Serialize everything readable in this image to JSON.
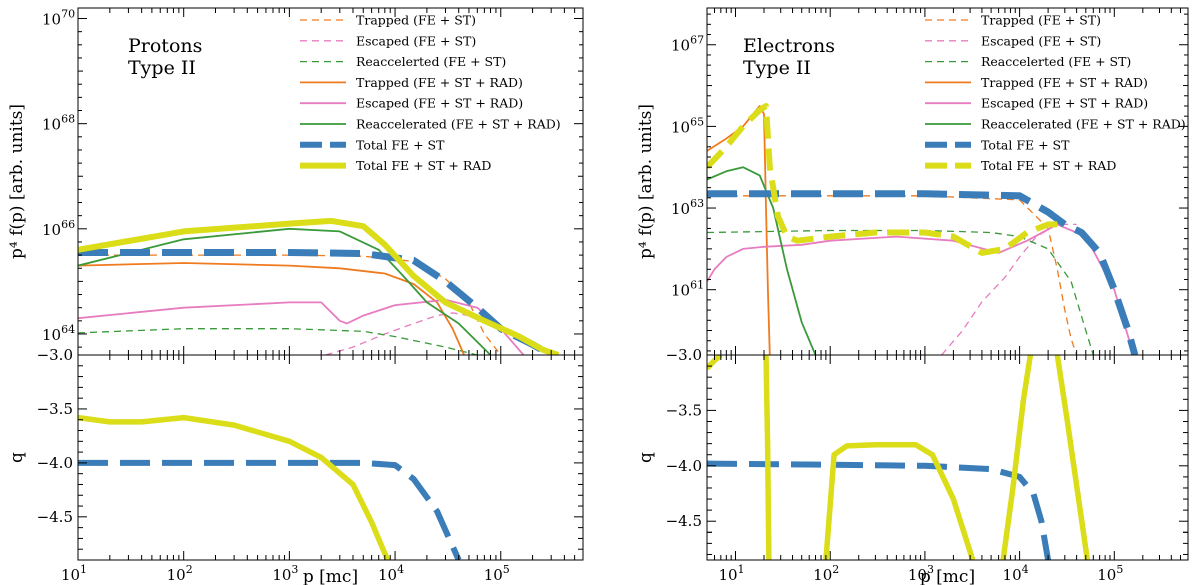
{
  "figure": {
    "xlabel": "p [mc]",
    "ylabel_top": "p⁴ f(p) [arb. units]",
    "ylabel_bottom": "q"
  },
  "chart_data": [
    {
      "type": "line",
      "panel": "protons",
      "title_lines": [
        "Protons",
        "Type II"
      ],
      "xscale": "log",
      "xlim": [
        10,
        600000
      ],
      "top": {
        "yscale": "log",
        "ylim_exp": [
          63.6,
          70.2
        ],
        "ytick_exps": [
          64,
          66,
          68,
          70
        ],
        "ytick_labels": [
          "10",
          "10",
          "10",
          "10"
        ],
        "ytick_sups": [
          "64",
          "66",
          "68",
          "70"
        ],
        "bottom_label": "−3.0",
        "series": [
          {
            "name": "Trapped (FE + ST)",
            "color": "#f07a1e",
            "width": 1.3,
            "dash": "7 5",
            "x": [
              10,
              100,
              1000,
              5000,
              15000,
              30000,
              50000,
              70000,
              100000
            ],
            "y": [
              65.5,
              65.5,
              65.5,
              65.48,
              65.38,
              65.05,
              64.6,
              64.0,
              63.6
            ]
          },
          {
            "name": "Escaped (FE + ST)",
            "color": "#e77cc0",
            "width": 1.3,
            "dash": "7 5",
            "x": [
              2200,
              4000,
              8000,
              15000,
              25000,
              35000,
              50000
            ],
            "y": [
              63.6,
              63.75,
              64.0,
              64.2,
              64.35,
              64.4,
              64.35
            ]
          },
          {
            "name": "Reaccelerted (FE + ST)",
            "color": "#3a9a3a",
            "width": 1.3,
            "dash": "7 5",
            "x": [
              10,
              100,
              1000,
              5000,
              10000,
              30000,
              60000,
              90000,
              120000
            ],
            "y": [
              64.02,
              64.1,
              64.1,
              64.05,
              63.95,
              63.75,
              63.6,
              63.5,
              63.3
            ]
          },
          {
            "name": "Trapped (FE + ST + RAD)",
            "color": "#f07a1e",
            "width": 1.8,
            "dash": "",
            "x": [
              10,
              100,
              1000,
              3000,
              8000,
              15000,
              25000,
              35000,
              45000
            ],
            "y": [
              65.3,
              65.35,
              65.3,
              65.25,
              65.15,
              64.95,
              64.6,
              64.1,
              63.6
            ]
          },
          {
            "name": "Escaped (FE + ST + RAD)",
            "color": "#e77cc0",
            "width": 1.8,
            "dash": "",
            "x": [
              10,
              100,
              1000,
              2000,
              3000,
              3500,
              5000,
              10000,
              30000,
              60000,
              100000,
              200000
            ],
            "y": [
              64.3,
              64.5,
              64.6,
              64.6,
              64.25,
              64.2,
              64.35,
              64.55,
              64.65,
              64.5,
              64.1,
              63.4
            ]
          },
          {
            "name": "Reaccelerated (FE + ST + RAD)",
            "color": "#3a9a3a",
            "width": 1.8,
            "dash": "",
            "x": [
              10,
              100,
              1000,
              3000,
              7000,
              12000,
              20000,
              40000,
              80000
            ],
            "y": [
              65.3,
              65.8,
              66.0,
              65.95,
              65.6,
              65.1,
              64.6,
              64.2,
              63.6
            ]
          },
          {
            "name": "Total FE + ST",
            "color": "#3a7db9",
            "width": 7,
            "dash": "30 12",
            "x": [
              10,
              100,
              1000,
              5000,
              15000,
              30000,
              60000,
              100000,
              200000,
              300000
            ],
            "y": [
              65.55,
              65.55,
              65.55,
              65.53,
              65.4,
              65.0,
              64.5,
              64.1,
              63.8,
              63.6
            ]
          },
          {
            "name": "Total FE + ST + RAD",
            "color": "#dadd17",
            "width": 6,
            "dash": "",
            "x": [
              10,
              100,
              1000,
              2500,
              5000,
              8000,
              15000,
              30000,
              70000,
              150000,
              250000,
              350000
            ],
            "y": [
              65.6,
              65.95,
              66.1,
              66.15,
              66.05,
              65.7,
              65.1,
              64.6,
              64.25,
              63.95,
              63.7,
              63.6
            ]
          }
        ]
      },
      "bottom": {
        "ylim": [
          -4.9,
          -3.0
        ],
        "ytick_values": [
          -3.5,
          -4.0,
          -4.5
        ],
        "ytick_labels": [
          "−3.5",
          "−4.0",
          "−4.5"
        ],
        "series": [
          {
            "name": "q FE + ST",
            "color": "#3a7db9",
            "width": 6,
            "dash": "30 12",
            "x": [
              10,
              100,
              1000,
              5000,
              10000,
              15000,
              25000,
              40000
            ],
            "y": [
              -4.0,
              -4.0,
              -4.0,
              -4.0,
              -4.02,
              -4.15,
              -4.45,
              -4.9
            ]
          },
          {
            "name": "q FE + ST + RAD",
            "color": "#dadd17",
            "width": 5.5,
            "dash": "",
            "x": [
              10,
              20,
              40,
              100,
              300,
              1000,
              2000,
              4000,
              6000,
              8500
            ],
            "y": [
              -3.58,
              -3.62,
              -3.62,
              -3.58,
              -3.65,
              -3.8,
              -3.95,
              -4.2,
              -4.55,
              -4.9
            ]
          }
        ]
      },
      "xticks": [
        {
          "value": 10,
          "label": "10",
          "sup": "1"
        },
        {
          "value": 100,
          "label": "10",
          "sup": "2"
        },
        {
          "value": 1000,
          "label": "10",
          "sup": "3"
        },
        {
          "value": 10000,
          "label": "10",
          "sup": "4"
        },
        {
          "value": 100000,
          "label": "10",
          "sup": "5"
        }
      ]
    },
    {
      "type": "line",
      "panel": "electrons",
      "title_lines": [
        "Electrons",
        "Type II"
      ],
      "xscale": "log",
      "xlim": [
        5,
        600000
      ],
      "top": {
        "yscale": "log",
        "ylim_exp": [
          59.4,
          67.9
        ],
        "ytick_exps": [
          61,
          63,
          65,
          67
        ],
        "ytick_labels": [
          "10",
          "10",
          "10",
          "10"
        ],
        "ytick_sups": [
          "61",
          "63",
          "65",
          "67"
        ],
        "bottom_label": "−3.0",
        "series": [
          {
            "name": "Trapped (FE + ST)",
            "color": "#f07a1e",
            "width": 1.3,
            "dash": "7 5",
            "x": [
              5,
              100,
              1000,
              10000,
              20000,
              25000,
              30000,
              35000,
              40000
            ],
            "y": [
              63.3,
              63.3,
              63.3,
              63.2,
              62.5,
              61.5,
              60.5,
              59.8,
              59.4
            ]
          },
          {
            "name": "Escaped (FE + ST)",
            "color": "#e77cc0",
            "width": 1.3,
            "dash": "7 5",
            "x": [
              1500,
              2500,
              4000,
              7000,
              10000,
              15000,
              25000,
              40000
            ],
            "y": [
              59.4,
              60.0,
              60.7,
              61.3,
              61.8,
              62.3,
              62.6,
              62.6
            ]
          },
          {
            "name": "Reaccelerted (FE + ST)",
            "color": "#3a9a3a",
            "width": 1.3,
            "dash": "7 5",
            "x": [
              5,
              100,
              1000,
              5000,
              10000,
              20000,
              35000,
              50000,
              60000
            ],
            "y": [
              62.4,
              62.45,
              62.45,
              62.4,
              62.3,
              62.0,
              61.2,
              60.0,
              59.4
            ]
          },
          {
            "name": "Trapped (FE + ST + RAD)",
            "color": "#f07a1e",
            "width": 1.8,
            "dash": "",
            "x": [
              5,
              8,
              12,
              18,
              20,
              21,
              22,
              23
            ],
            "y": [
              64.4,
              64.7,
              65.0,
              65.5,
              65.3,
              63.0,
              61.0,
              59.4
            ]
          },
          {
            "name": "Escaped (FE + ST + RAD)",
            "color": "#e77cc0",
            "width": 1.8,
            "dash": "",
            "x": [
              5,
              6,
              8,
              12,
              20,
              50,
              100,
              500,
              2000,
              6000,
              12000,
              25000,
              50000,
              100000,
              160000
            ],
            "y": [
              61.2,
              61.5,
              61.8,
              62.0,
              62.05,
              62.1,
              62.2,
              62.3,
              62.2,
              61.9,
              62.2,
              62.6,
              62.3,
              61.0,
              59.4
            ]
          },
          {
            "name": "Reaccelerated (FE + ST + RAD)",
            "color": "#3a9a3a",
            "width": 1.8,
            "dash": "",
            "x": [
              5,
              8,
              12,
              18,
              25,
              35,
              50,
              70
            ],
            "y": [
              63.7,
              63.9,
              64.0,
              63.8,
              63.0,
              61.5,
              60.2,
              59.4
            ]
          },
          {
            "name": "Total FE + ST",
            "color": "#3a7db9",
            "width": 7,
            "dash": "30 12",
            "x": [
              5,
              100,
              1000,
              10000,
              20000,
              30000,
              45000,
              70000,
              100000,
              140000,
              165000
            ],
            "y": [
              63.35,
              63.35,
              63.35,
              63.3,
              62.9,
              62.6,
              62.4,
              61.9,
              61.0,
              60.0,
              59.4
            ]
          },
          {
            "name": "Total FE + ST + RAD",
            "color": "#dadd17",
            "width": 6,
            "dash": "22 10",
            "x": [
              5,
              8,
              12,
              18,
              21,
              23,
              28,
              35,
              45,
              100,
              300,
              1000,
              2000,
              4000,
              7000,
              12000,
              20000,
              25000
            ],
            "y": [
              64.0,
              64.5,
              65.0,
              65.4,
              65.5,
              64.0,
              62.8,
              62.3,
              62.2,
              62.3,
              62.4,
              62.4,
              62.3,
              61.9,
              62.0,
              62.4,
              62.6,
              62.6
            ]
          }
        ]
      },
      "bottom": {
        "ylim": [
          -4.85,
          -3.0
        ],
        "ytick_values": [
          -3.5,
          -4.0,
          -4.5
        ],
        "ytick_labels": [
          "−3.5",
          "−4.0",
          "−4.5"
        ],
        "series": [
          {
            "name": "q FE + ST",
            "color": "#3a7db9",
            "width": 6,
            "dash": "30 12",
            "x": [
              5,
              100,
              1000,
              5000,
              10000,
              14000,
              17000,
              20000
            ],
            "y": [
              -3.98,
              -3.99,
              -4.0,
              -4.03,
              -4.1,
              -4.25,
              -4.5,
              -4.85
            ]
          },
          {
            "name": "q FE + ST + RAD (a)",
            "color": "#dadd17",
            "width": 5.5,
            "dash": "",
            "x": [
              5,
              6,
              7
            ],
            "y": [
              -3.12,
              -3.05,
              -3.0
            ]
          },
          {
            "name": "q FE + ST + RAD (b)",
            "color": "#dadd17",
            "width": 5.5,
            "dash": "",
            "x": [
              21,
              21.8,
              22.5
            ],
            "y": [
              -3.0,
              -3.8,
              -4.85
            ]
          },
          {
            "name": "q FE + ST + RAD (c)",
            "color": "#dadd17",
            "width": 5.5,
            "dash": "",
            "x": [
              90,
              110,
              150,
              300,
              800,
              1200,
              2000,
              3200
            ],
            "y": [
              -4.85,
              -3.9,
              -3.82,
              -3.81,
              -3.81,
              -3.9,
              -4.3,
              -4.85
            ]
          },
          {
            "name": "q FE + ST + RAD (d)",
            "color": "#dadd17",
            "width": 5.5,
            "dash": "",
            "x": [
              6700,
              8500,
              11000,
              13000
            ],
            "y": [
              -4.85,
              -4.2,
              -3.4,
              -3.0
            ]
          },
          {
            "name": "q FE + ST + RAD (e)",
            "color": "#dadd17",
            "width": 5.5,
            "dash": "",
            "x": [
              25000,
              32000,
              42000,
              52000
            ],
            "y": [
              -3.0,
              -3.6,
              -4.3,
              -4.85
            ]
          }
        ]
      },
      "xticks": [
        {
          "value": 10,
          "label": "10",
          "sup": "1"
        },
        {
          "value": 100,
          "label": "10",
          "sup": "2"
        },
        {
          "value": 1000,
          "label": "10",
          "sup": "3"
        },
        {
          "value": 10000,
          "label": "10",
          "sup": "4"
        },
        {
          "value": 100000,
          "label": "10",
          "sup": "5"
        }
      ]
    }
  ]
}
